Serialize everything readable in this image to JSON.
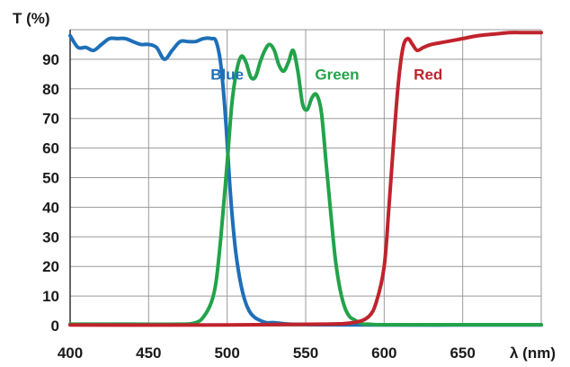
{
  "chart_data": {
    "type": "line",
    "title": "",
    "xlabel": "λ (nm)",
    "ylabel": "T (%)",
    "xlim": [
      400,
      700
    ],
    "ylim": [
      0,
      100
    ],
    "x_ticks": [
      400,
      450,
      500,
      550,
      600,
      650
    ],
    "x_tick_labels": [
      "400",
      "450",
      "500",
      "550",
      "600",
      "650"
    ],
    "y_ticks": [
      0,
      10,
      20,
      30,
      40,
      50,
      60,
      70,
      80,
      90
    ],
    "y_tick_labels": [
      "0",
      "10",
      "20",
      "30",
      "40",
      "50",
      "60",
      "70",
      "80",
      "90"
    ],
    "grid": true,
    "series": [
      {
        "name": "Blue",
        "color": "#1e6fb8",
        "label_at": [
          500,
          85
        ],
        "x": [
          400,
          405,
          410,
          415,
          420,
          425,
          430,
          435,
          440,
          445,
          450,
          455,
          460,
          465,
          470,
          475,
          480,
          485,
          490,
          493,
          496,
          499,
          502,
          505,
          508,
          511,
          514,
          517,
          520,
          525,
          530,
          540,
          560,
          600,
          650,
          700
        ],
        "y": [
          98,
          94,
          94,
          93,
          95,
          97,
          97,
          97,
          96,
          95,
          95,
          94,
          90,
          93,
          96,
          96,
          96,
          97,
          97,
          96,
          88,
          70,
          45,
          27,
          16,
          9,
          5,
          3,
          2,
          1,
          1,
          0.5,
          0.3,
          0.2,
          0.2,
          0.2
        ]
      },
      {
        "name": "Green",
        "color": "#22a34a",
        "label_at": [
          570,
          85
        ],
        "x": [
          400,
          440,
          470,
          480,
          485,
          490,
          493,
          496,
          500,
          503,
          506,
          509,
          512,
          515,
          518,
          521,
          524,
          527,
          530,
          533,
          536,
          539,
          542,
          545,
          548,
          551,
          554,
          557,
          560,
          563,
          566,
          569,
          572,
          575,
          578,
          581,
          584,
          587,
          590,
          595,
          600,
          650,
          700
        ],
        "y": [
          0.5,
          0.5,
          0.5,
          1,
          3,
          8,
          15,
          30,
          55,
          75,
          86,
          91,
          89,
          84,
          84,
          89,
          93,
          95,
          93,
          88,
          86,
          89,
          93,
          86,
          75,
          73,
          77,
          78,
          72,
          55,
          38,
          22,
          12,
          6,
          3,
          2,
          1,
          0.5,
          0.5,
          0.3,
          0.3,
          0.3,
          0.3
        ]
      },
      {
        "name": "Red",
        "color": "#c0232c",
        "label_at": [
          628,
          85
        ],
        "x": [
          400,
          500,
          560,
          580,
          590,
          595,
          600,
          603,
          606,
          609,
          612,
          615,
          618,
          621,
          625,
          630,
          640,
          650,
          660,
          670,
          680,
          690,
          700
        ],
        "y": [
          0.2,
          0.2,
          0.5,
          1,
          3,
          8,
          20,
          40,
          62,
          82,
          94,
          97,
          95,
          93,
          94,
          95,
          96,
          97,
          98,
          98.5,
          99,
          99,
          99
        ]
      }
    ]
  }
}
